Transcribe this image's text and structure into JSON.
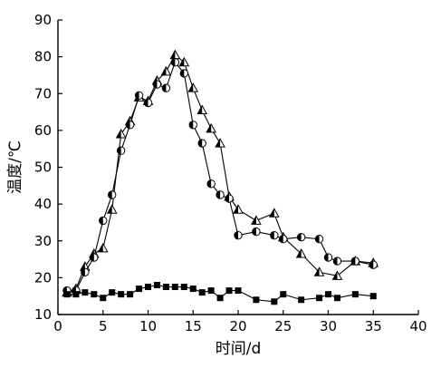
{
  "chart_data": {
    "type": "line",
    "title": "",
    "xlabel": "时间/d",
    "ylabel": "温度/℃",
    "xlim": [
      0,
      40
    ],
    "ylim": [
      10,
      90
    ],
    "xticks": [
      0,
      5,
      10,
      15,
      20,
      25,
      30,
      35,
      40
    ],
    "yticks": [
      10,
      20,
      30,
      40,
      50,
      60,
      70,
      80,
      90
    ],
    "grid": false,
    "legend": "none",
    "series": [
      {
        "marker": "half-filled-triangle",
        "color": "#000000",
        "x": [
          1,
          2,
          3,
          4,
          5,
          6,
          7,
          8,
          9,
          10,
          11,
          12,
          13,
          14,
          15,
          16,
          17,
          18,
          19,
          20,
          22,
          24,
          25,
          27,
          29,
          31,
          33,
          35
        ],
        "y": [
          16,
          17,
          23,
          26.5,
          28,
          38.5,
          59,
          62.5,
          69,
          68,
          73.5,
          76,
          80.5,
          78.5,
          71.5,
          65.5,
          60.5,
          56.5,
          42,
          38.5,
          35.5,
          37.5,
          31,
          26.5,
          21.5,
          20.5,
          24.5,
          24
        ]
      },
      {
        "marker": "half-filled-circle",
        "color": "#000000",
        "x": [
          1,
          2,
          3,
          4,
          5,
          6,
          7,
          8,
          9,
          10,
          11,
          12,
          13,
          14,
          15,
          16,
          17,
          18,
          19,
          20,
          22,
          24,
          25,
          27,
          29,
          30,
          31,
          33,
          35
        ],
        "y": [
          16.5,
          16.5,
          21.5,
          25.5,
          35.5,
          42.5,
          54.5,
          61.5,
          69.5,
          67.5,
          72.5,
          71.5,
          78.5,
          75.5,
          61.5,
          56.5,
          45.5,
          42.5,
          41.5,
          31.5,
          32.5,
          31.5,
          30.5,
          31.0,
          30.5,
          25.5,
          24.5,
          24.5,
          23.5
        ]
      },
      {
        "marker": "filled-square",
        "color": "#000000",
        "x": [
          1,
          2,
          3,
          4,
          5,
          6,
          7,
          8,
          9,
          10,
          11,
          12,
          13,
          14,
          15,
          16,
          17,
          18,
          19,
          20,
          22,
          24,
          25,
          27,
          29,
          30,
          31,
          33,
          35
        ],
        "y": [
          15.5,
          15.5,
          16,
          15.5,
          14.5,
          16,
          15.5,
          15.5,
          17,
          17.5,
          18,
          17.5,
          17.5,
          17.5,
          17,
          16,
          16.5,
          14.5,
          16.5,
          16.5,
          14,
          13.5,
          15.5,
          14,
          14.5,
          15.5,
          14.5,
          15.5,
          15
        ]
      }
    ]
  }
}
